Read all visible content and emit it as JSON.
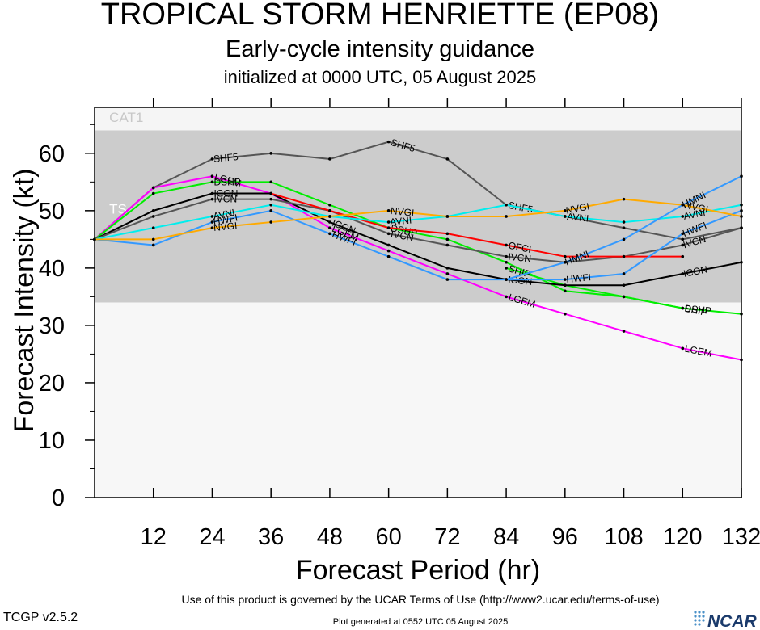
{
  "header": {
    "title": "TROPICAL STORM HENRIETTE (EP08)",
    "subtitle": "Early-cycle intensity guidance",
    "init": "initialized at 0000 UTC, 05 August 2025"
  },
  "footer": {
    "terms": "Use of this product is governed by the UCAR Terms of Use (http://www2.ucar.edu/terms-of-use)",
    "generated": "Plot generated at 0552 UTC   05 August 2025",
    "version": "TCGP v2.5.2",
    "logo": "NCAR"
  },
  "chart_data": {
    "type": "line",
    "xlabel": "Forecast Period (hr)",
    "ylabel": "Forecast Intensity (kt)",
    "xlim": [
      0,
      132
    ],
    "ylim": [
      0,
      68
    ],
    "xticks": [
      12,
      24,
      36,
      48,
      60,
      72,
      84,
      96,
      108,
      120,
      132
    ],
    "yticks": [
      0,
      10,
      20,
      30,
      40,
      50,
      60
    ],
    "grid": false,
    "bands": [
      {
        "label": "TS",
        "from": 34,
        "to": 64,
        "color": "#cccccc"
      },
      {
        "label": "CAT1",
        "from": 64,
        "to": 68,
        "color": "#f5f5f5"
      }
    ],
    "series": [
      {
        "name": "SHF5",
        "color": "#555555",
        "x": [
          0,
          12,
          24,
          36,
          48,
          60,
          72,
          84,
          96,
          108,
          120,
          132
        ],
        "y": [
          45,
          54,
          59,
          60,
          59,
          62,
          59,
          51,
          49,
          47,
          45,
          47
        ],
        "labels": [
          [
            24,
            "SHF5"
          ],
          [
            60,
            "SHF5"
          ],
          [
            84,
            "SHF5"
          ]
        ]
      },
      {
        "name": "LGEM",
        "color": "#ff00ff",
        "x": [
          0,
          12,
          24,
          36,
          48,
          60,
          72,
          84,
          96,
          108,
          120,
          132
        ],
        "y": [
          45,
          54,
          56,
          53,
          47,
          43,
          39,
          35,
          32,
          29,
          26,
          24
        ],
        "labels": [
          [
            24,
            "LGEM"
          ],
          [
            48,
            "LGEM"
          ],
          [
            84,
            "LGEM"
          ],
          [
            120,
            "LGEM"
          ]
        ]
      },
      {
        "name": "DSHP",
        "color": "#00ee00",
        "x": [
          0,
          12,
          24,
          36,
          48,
          60,
          72,
          84,
          96,
          108,
          120,
          132
        ],
        "y": [
          45,
          53,
          55,
          55,
          51,
          47,
          45,
          41,
          36,
          35,
          33,
          32
        ],
        "labels": [
          [
            24,
            "DSHP"
          ],
          [
            60,
            "DSHP"
          ],
          [
            120,
            "DSHP"
          ]
        ]
      },
      {
        "name": "SHIP",
        "color": "#00ee00",
        "x": [
          84,
          96,
          108,
          120
        ],
        "y": [
          40,
          37,
          35,
          33
        ],
        "labels": [
          [
            84,
            "SHIP"
          ],
          [
            120,
            "SHIP"
          ]
        ]
      },
      {
        "name": "ICON",
        "color": "#000000",
        "x": [
          0,
          12,
          24,
          36,
          48,
          60,
          72,
          84,
          96,
          108,
          120,
          132
        ],
        "y": [
          45,
          50,
          53,
          53,
          48,
          44,
          40,
          38,
          37,
          37,
          39,
          41
        ],
        "labels": [
          [
            24,
            "ICON"
          ],
          [
            48,
            "ICON"
          ],
          [
            84,
            "ICON"
          ],
          [
            120,
            "ICON"
          ]
        ]
      },
      {
        "name": "IVCN",
        "color": "#555555",
        "x": [
          0,
          12,
          24,
          36,
          48,
          60,
          72,
          84,
          96,
          108,
          120,
          132
        ],
        "y": [
          45,
          49,
          52,
          52,
          50,
          46,
          44,
          42,
          41,
          42,
          44,
          47
        ],
        "labels": [
          [
            24,
            "IVCN"
          ],
          [
            60,
            "IVCN"
          ],
          [
            84,
            "IVCN"
          ],
          [
            120,
            "IVCN"
          ]
        ]
      },
      {
        "name": "OFCI",
        "color": "#ff0000",
        "x": [
          36,
          48,
          60,
          72,
          84,
          96,
          108,
          120
        ],
        "y": [
          53,
          50,
          47,
          46,
          44,
          42,
          42,
          42
        ],
        "labels": [
          [
            84,
            "OFCI"
          ]
        ]
      },
      {
        "name": "HWFI",
        "color": "#3399ff",
        "x": [
          0,
          12,
          24,
          36,
          48,
          60,
          72,
          84,
          96,
          108,
          120,
          132
        ],
        "y": [
          45,
          44,
          48,
          50,
          46,
          42,
          38,
          38,
          38,
          39,
          46,
          50
        ],
        "labels": [
          [
            24,
            "HWFI"
          ],
          [
            48,
            "HWFI"
          ],
          [
            96,
            "HWFI"
          ],
          [
            120,
            "HWFI"
          ]
        ]
      },
      {
        "name": "AVNI",
        "color": "#00eeee",
        "x": [
          0,
          12,
          24,
          36,
          48,
          60,
          72,
          84,
          96,
          108,
          120,
          132
        ],
        "y": [
          45,
          47,
          49,
          51,
          49,
          48,
          49,
          51,
          49,
          48,
          49,
          51
        ],
        "labels": [
          [
            24,
            "AVNI"
          ],
          [
            60,
            "AVNI"
          ],
          [
            96,
            "AVNI"
          ],
          [
            120,
            "AVNI"
          ]
        ]
      },
      {
        "name": "NVGI",
        "color": "#ffaa00",
        "x": [
          0,
          12,
          24,
          36,
          48,
          60,
          72,
          84,
          96,
          108,
          120,
          132
        ],
        "y": [
          45,
          45,
          47,
          48,
          49,
          50,
          49,
          49,
          50,
          52,
          51,
          49
        ],
        "labels": [
          [
            24,
            "NVGI"
          ],
          [
            60,
            "NVGI"
          ],
          [
            96,
            "NVGI"
          ],
          [
            120,
            "NVGI"
          ]
        ]
      },
      {
        "name": "HMNI",
        "color": "#3399ff",
        "x": [
          84,
          96,
          108,
          120,
          132
        ],
        "y": [
          38,
          41,
          45,
          51,
          56
        ],
        "labels": [
          [
            96,
            "HMNI"
          ],
          [
            120,
            "HMNI"
          ]
        ]
      }
    ]
  }
}
